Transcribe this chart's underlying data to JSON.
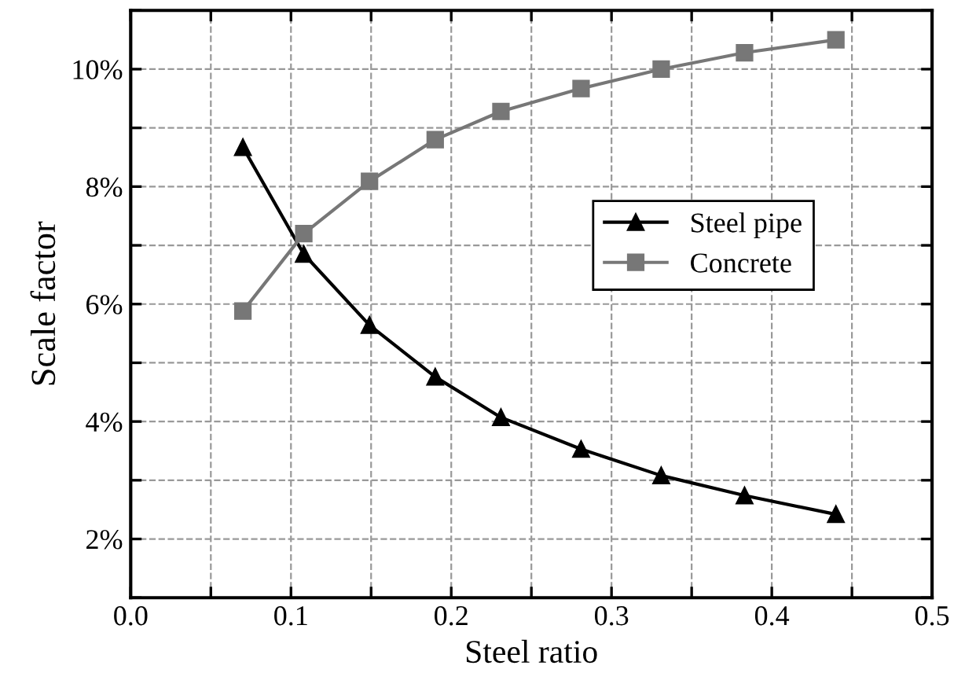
{
  "chart_data": {
    "type": "line",
    "xlabel": "Steel ratio",
    "ylabel": "Scale factor",
    "x": [
      0.07,
      0.108,
      0.149,
      0.19,
      0.231,
      0.281,
      0.331,
      0.383,
      0.44
    ],
    "series": [
      {
        "name": "Steel pipe",
        "color": "#000000",
        "marker": "triangle",
        "values": [
          8.67,
          6.85,
          5.64,
          4.76,
          4.07,
          3.53,
          3.08,
          2.74,
          2.42
        ]
      },
      {
        "name": "Concrete",
        "color": "#777777",
        "marker": "square",
        "values": [
          5.88,
          7.2,
          8.09,
          8.8,
          9.28,
          9.67,
          10.0,
          10.28,
          10.5
        ]
      }
    ],
    "xlim": [
      0,
      0.5
    ],
    "xticks": [
      {
        "value": 0,
        "label": "0.0"
      },
      {
        "value": 0.05,
        "label": null
      },
      0.1,
      {
        "value": 0.15,
        "label": null
      },
      0.2,
      {
        "value": 0.25,
        "label": null
      },
      0.3,
      {
        "value": 0.35,
        "label": null
      },
      0.4,
      {
        "value": 0.45,
        "label": null
      },
      0.5
    ],
    "ylim": [
      1,
      11
    ],
    "yticks": [
      {
        "value": 1,
        "label": null
      },
      {
        "value": 2,
        "label": "2%"
      },
      {
        "value": 3,
        "label": null
      },
      {
        "value": 4,
        "label": "4%"
      },
      {
        "value": 5,
        "label": null
      },
      {
        "value": 6,
        "label": "6%"
      },
      {
        "value": 7,
        "label": null
      },
      {
        "value": 8,
        "label": "8%"
      },
      {
        "value": 9,
        "label": null
      },
      {
        "value": 10,
        "label": "10%"
      },
      {
        "value": 11,
        "label": null
      }
    ],
    "grid": true,
    "legend": "center right",
    "line_style": "solid"
  }
}
